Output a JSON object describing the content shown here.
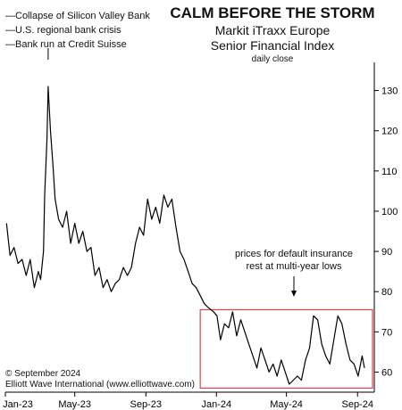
{
  "header": {
    "title": "CALM BEFORE THE STORM",
    "subtitle_line1": "Markit iTraxx Europe",
    "subtitle_line2": "Senior Financial Index",
    "frequency": "daily close"
  },
  "events": [
    "—Collapse of Silicon Valley Bank",
    "—U.S. regional bank crisis",
    "—Bank run at Credit Suisse"
  ],
  "annotation": {
    "line1": "prices for default insurance",
    "line2": "rest at multi-year lows"
  },
  "footer": {
    "copyright": "© September 2024",
    "source": "Elliott Wave International (www.elliottwave.com)"
  },
  "colors": {
    "line": "#000000",
    "highlight_box": "#d9474c",
    "axis": "#000000"
  },
  "chart_data": {
    "type": "line",
    "title": "CALM BEFORE THE STORM",
    "subtitle": "Markit iTraxx Europe Senior Financial Index",
    "xlabel": "",
    "ylabel": "",
    "ylim": [
      55,
      137
    ],
    "y_ticks": [
      60,
      70,
      80,
      90,
      100,
      110,
      120,
      130
    ],
    "y_axis_side": "right",
    "x_range": [
      "2023-01-01",
      "2024-09-30"
    ],
    "x_ticks": [
      "Jan-23",
      "May-23",
      "Sep-23",
      "Jan-24",
      "May-24",
      "Sep-24"
    ],
    "grid": false,
    "highlight_region": {
      "x": [
        "2023-12-04",
        "2024-09-30"
      ],
      "y": [
        56,
        75.5
      ]
    },
    "series": [
      {
        "x": [
          "2023-01-03",
          "2023-01-09",
          "2023-01-16",
          "2023-01-23",
          "2023-01-30",
          "2023-02-06",
          "2023-02-13",
          "2023-02-20",
          "2023-02-27",
          "2023-03-03",
          "2023-03-08",
          "2023-03-10",
          "2023-03-14",
          "2023-03-16",
          "2023-03-20",
          "2023-03-24",
          "2023-03-28",
          "2023-04-03",
          "2023-04-10",
          "2023-04-17",
          "2023-04-24",
          "2023-05-01",
          "2023-05-08",
          "2023-05-15",
          "2023-05-22",
          "2023-05-29",
          "2023-06-05",
          "2023-06-12",
          "2023-06-19",
          "2023-06-26",
          "2023-07-03",
          "2023-07-10",
          "2023-07-17",
          "2023-07-24",
          "2023-07-31",
          "2023-08-07",
          "2023-08-14",
          "2023-08-21",
          "2023-08-28",
          "2023-09-04",
          "2023-09-11",
          "2023-09-18",
          "2023-09-25",
          "2023-10-02",
          "2023-10-09",
          "2023-10-16",
          "2023-10-23",
          "2023-10-30",
          "2023-11-06",
          "2023-11-13",
          "2023-11-20",
          "2023-11-27",
          "2023-12-04",
          "2023-12-11",
          "2023-12-18",
          "2023-12-27",
          "2024-01-02",
          "2024-01-08",
          "2024-01-15",
          "2024-01-22",
          "2024-01-29",
          "2024-02-05",
          "2024-02-12",
          "2024-02-19",
          "2024-02-26",
          "2024-03-04",
          "2024-03-11",
          "2024-03-18",
          "2024-03-25",
          "2024-04-01",
          "2024-04-08",
          "2024-04-15",
          "2024-04-22",
          "2024-04-29",
          "2024-05-06",
          "2024-05-13",
          "2024-05-20",
          "2024-05-27",
          "2024-06-03",
          "2024-06-10",
          "2024-06-17",
          "2024-06-24",
          "2024-07-01",
          "2024-07-08",
          "2024-07-15",
          "2024-07-22",
          "2024-07-29",
          "2024-08-05",
          "2024-08-12",
          "2024-08-19",
          "2024-08-26",
          "2024-09-02",
          "2024-09-09",
          "2024-09-13"
        ],
        "y": [
          97,
          89,
          91,
          87,
          88,
          84,
          88,
          81,
          85,
          83,
          90,
          104,
          118,
          131,
          120,
          112,
          103,
          98,
          96,
          100,
          92,
          97,
          92,
          95,
          90,
          91,
          84,
          86,
          81,
          83,
          80,
          82,
          83,
          86,
          84,
          86,
          92,
          96,
          94,
          103,
          98,
          101,
          97,
          104,
          101,
          103,
          96,
          90,
          88,
          85,
          82,
          81,
          79,
          77,
          76,
          75,
          74,
          68,
          72,
          71,
          75,
          69,
          73,
          70,
          67,
          64,
          61,
          66,
          63,
          60,
          62,
          59,
          63,
          60,
          57,
          58,
          59,
          58,
          63,
          66,
          74,
          73,
          67,
          64,
          62,
          68,
          74,
          72,
          67,
          63,
          62,
          59,
          64,
          61
        ]
      }
    ]
  }
}
